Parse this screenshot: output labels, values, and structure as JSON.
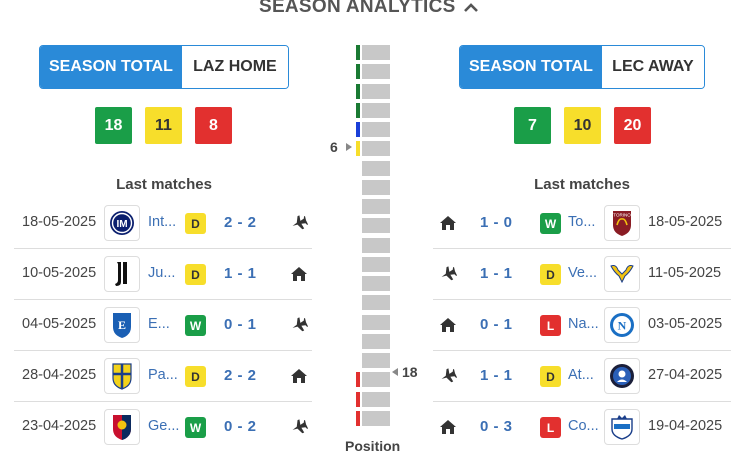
{
  "header": {
    "title": "SEASON ANALYTICS"
  },
  "left": {
    "toggle": {
      "active": "SEASON TOTAL",
      "inactive": "LAZ HOME"
    },
    "record": {
      "wins": "18",
      "draws": "11",
      "losses": "8"
    },
    "last_matches_title": "Last matches",
    "matches": [
      {
        "date": "18-05-2025",
        "team": "Int...",
        "result": "D",
        "score": "2 - 2",
        "venue": "away",
        "logo": "inter-logo"
      },
      {
        "date": "10-05-2025",
        "team": "Ju...",
        "result": "D",
        "score": "1 - 1",
        "venue": "home",
        "logo": "juventus-logo"
      },
      {
        "date": "04-05-2025",
        "team": "E...",
        "result": "W",
        "score": "0 - 1",
        "venue": "away",
        "logo": "empoli-logo"
      },
      {
        "date": "28-04-2025",
        "team": "Pa...",
        "result": "D",
        "score": "2 - 2",
        "venue": "home",
        "logo": "parma-logo"
      },
      {
        "date": "23-04-2025",
        "team": "Ge...",
        "result": "W",
        "score": "0 - 2",
        "venue": "away",
        "logo": "genoa-logo"
      }
    ]
  },
  "right": {
    "toggle": {
      "active": "SEASON TOTAL",
      "inactive": "LEC AWAY"
    },
    "record": {
      "wins": "7",
      "draws": "10",
      "losses": "20"
    },
    "last_matches_title": "Last matches",
    "matches": [
      {
        "date": "18-05-2025",
        "team": "To...",
        "result": "W",
        "score": "1 - 0",
        "venue": "home",
        "logo": "torino-logo"
      },
      {
        "date": "11-05-2025",
        "team": "Ve...",
        "result": "D",
        "score": "1 - 1",
        "venue": "away",
        "logo": "verona-logo"
      },
      {
        "date": "03-05-2025",
        "team": "Na...",
        "result": "L",
        "score": "0 - 1",
        "venue": "home",
        "logo": "napoli-logo"
      },
      {
        "date": "27-04-2025",
        "team": "At...",
        "result": "D",
        "score": "1 - 1",
        "venue": "away",
        "logo": "atalanta-logo"
      },
      {
        "date": "19-04-2025",
        "team": "Co...",
        "result": "L",
        "score": "0 - 3",
        "venue": "home",
        "logo": "como-logo"
      }
    ]
  },
  "position": {
    "label": "Position",
    "total_positions": 20,
    "left_team_position": "6",
    "right_team_position": "18",
    "zone_colors": {
      "1": "#1a7a33",
      "2": "#1a7a33",
      "3": "#1a7a33",
      "4": "#1a7a33",
      "5": "#1a3fd8",
      "6": "#f7de2b",
      "18": "#e2302f",
      "19": "#e2302f",
      "20": "#e2302f"
    }
  },
  "colors": {
    "accent": "#2a8ad8",
    "win": "#1a9e48",
    "draw": "#f7de2b",
    "loss": "#e2302f",
    "link": "#3b6fb4"
  }
}
